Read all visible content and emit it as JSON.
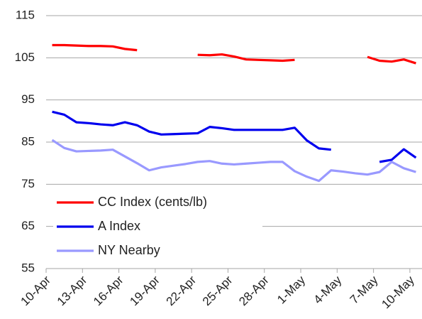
{
  "chart_data": {
    "type": "line",
    "categories": [
      "10-Apr",
      null,
      null,
      "13-Apr",
      null,
      null,
      "16-Apr",
      null,
      null,
      "19-Apr",
      null,
      null,
      "22-Apr",
      null,
      null,
      "25-Apr",
      null,
      null,
      "28-Apr",
      null,
      null,
      "1-May",
      null,
      null,
      "4-May",
      null,
      null,
      "7-May",
      null,
      null,
      "10-May"
    ],
    "series": [
      {
        "name": "CC Index (cents/lb)",
        "color": "#ff0000",
        "values": [
          108.0,
          108.0,
          107.9,
          107.8,
          107.8,
          107.7,
          107.1,
          106.8,
          null,
          null,
          null,
          null,
          105.7,
          105.6,
          105.8,
          105.3,
          104.6,
          104.5,
          104.4,
          104.3,
          104.5,
          null,
          null,
          null,
          null,
          null,
          105.2,
          104.3,
          104.1,
          104.6,
          103.7
        ]
      },
      {
        "name": "A Index",
        "color": "#0000ee",
        "values": [
          92.2,
          91.5,
          89.7,
          89.5,
          89.2,
          89.0,
          89.7,
          89.0,
          87.5,
          86.8,
          86.9,
          87.0,
          87.1,
          88.6,
          88.3,
          87.9,
          87.9,
          87.9,
          87.9,
          87.9,
          88.4,
          85.4,
          83.5,
          83.2,
          null,
          null,
          null,
          80.3,
          80.8,
          83.3,
          81.3
        ]
      },
      {
        "name": "NY Nearby",
        "color": "#9999ff",
        "values": [
          85.5,
          83.6,
          82.8,
          82.9,
          83.0,
          83.2,
          81.6,
          80.0,
          78.3,
          79.0,
          79.4,
          79.8,
          80.3,
          80.5,
          79.9,
          79.7,
          79.9,
          80.1,
          80.3,
          80.3,
          78.1,
          76.8,
          75.8,
          78.3,
          78.0,
          77.6,
          77.3,
          77.9,
          80.3,
          78.8,
          77.9
        ]
      }
    ],
    "ylim": [
      55,
      115
    ],
    "yticks": [
      55,
      65,
      75,
      85,
      95,
      105,
      115
    ],
    "grid": true,
    "legend": "lower-left"
  }
}
